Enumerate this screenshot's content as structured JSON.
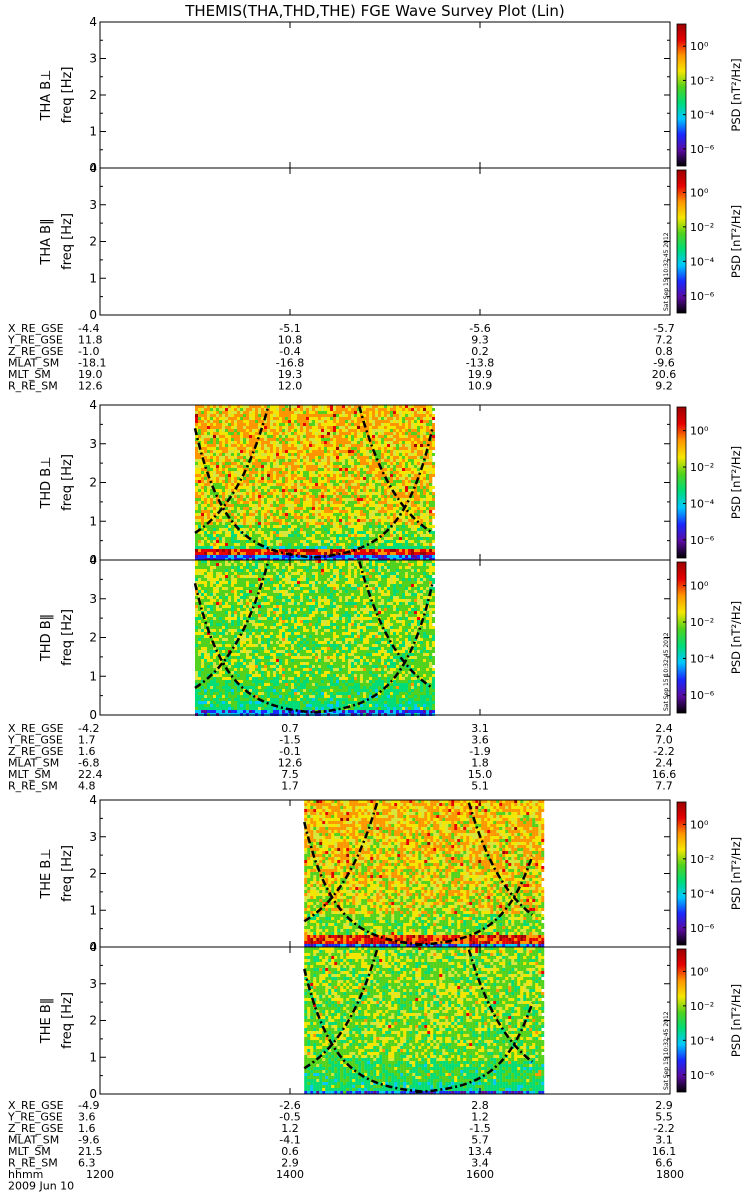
{
  "title": "THEMIS(THA,THD,THE) FGE Wave Survey Plot (Lin)",
  "chart_data": {
    "type": "heatmap",
    "time_axis": {
      "label": "hhmm",
      "ticks": [
        "1200",
        "1400",
        "1600",
        "1800"
      ],
      "date": "2009 Jun 10",
      "range_hours": [
        12,
        18
      ]
    },
    "colorbar": {
      "label": "PSD [nT²/Hz]",
      "ticks": [
        "10⁰",
        "10⁻²",
        "10⁻⁴",
        "10⁻⁶"
      ],
      "log_range": [
        -7,
        1.3
      ],
      "scale": "log",
      "colors": [
        "#000000",
        "#5a0aa0",
        "#1a28ff",
        "#00c8ff",
        "#00dc78",
        "#50d21e",
        "#f5e600",
        "#ff9600",
        "#e60000",
        "#9b0000"
      ],
      "stamp": "Sat Sep 15 10:32:45 2012"
    },
    "panels": [
      {
        "probe": "THA",
        "component": "B⊥",
        "ylabel": "freq [Hz]",
        "ylim": [
          0,
          4
        ],
        "yticks": [
          "0",
          "1",
          "2",
          "3",
          "4"
        ],
        "data_start_hour": null,
        "data_end_hour": null,
        "has_stamp": false
      },
      {
        "probe": "THA",
        "component": "B‖",
        "ylabel": "freq [Hz]",
        "ylim": [
          0,
          4
        ],
        "yticks": [
          "0",
          "1",
          "2",
          "3",
          "4"
        ],
        "data_start_hour": null,
        "data_end_hour": null,
        "has_stamp": true
      },
      {
        "probe": "THD",
        "component": "B⊥",
        "ylabel": "freq [Hz]",
        "ylim": [
          0,
          4
        ],
        "yticks": [
          "0",
          "1",
          "2",
          "3",
          "4"
        ],
        "data_start_hour": 13.0,
        "data_end_hour": 15.5,
        "has_stamp": false,
        "low_band_hz": 0.15,
        "gyro_lines": {
          "center_hour": 14.25,
          "min_hz": 0.7,
          "max_hz": 4.0
        }
      },
      {
        "probe": "THD",
        "component": "B‖",
        "ylabel": "freq [Hz]",
        "ylim": [
          0,
          4
        ],
        "yticks": [
          "0",
          "1",
          "2",
          "3",
          "4"
        ],
        "data_start_hour": 13.0,
        "data_end_hour": 15.5,
        "has_stamp": true,
        "low_band_hz": 0.15,
        "gyro_lines": {
          "center_hour": 14.25,
          "min_hz": 0.7,
          "max_hz": 4.0
        }
      },
      {
        "probe": "THE",
        "component": "B⊥",
        "ylabel": "freq [Hz]",
        "ylim": [
          0,
          4
        ],
        "yticks": [
          "0",
          "1",
          "2",
          "3",
          "4"
        ],
        "data_start_hour": 14.15,
        "data_end_hour": 16.65,
        "has_stamp": false,
        "low_band_hz": 0.15,
        "gyro_lines": {
          "center_hour": 15.3,
          "min_hz": 0.7,
          "max_hz": 4.0
        }
      },
      {
        "probe": "THE",
        "component": "B‖",
        "ylabel": "freq [Hz]",
        "ylim": [
          0,
          4
        ],
        "yticks": [
          "0",
          "1",
          "2",
          "3",
          "4"
        ],
        "data_start_hour": 14.15,
        "data_end_hour": 16.65,
        "has_stamp": true,
        "low_band_hz": 0.15,
        "gyro_lines": {
          "center_hour": 15.3,
          "min_hz": 0.7,
          "max_hz": 4.0
        }
      }
    ],
    "ephemeris": [
      {
        "probe": "THA",
        "rows": [
          {
            "label": "X_RE_GSE",
            "values": [
              "-4.4",
              "-5.1",
              "-5.6",
              "-5.7"
            ]
          },
          {
            "label": "Y_RE_GSE",
            "values": [
              "11.8",
              "10.8",
              "9.3",
              "7.2"
            ]
          },
          {
            "label": "Z_RE_GSE",
            "values": [
              "-1.0",
              "-0.4",
              "0.2",
              "0.8"
            ]
          },
          {
            "label": "MLAT_SM",
            "values": [
              "-18.1",
              "-16.8",
              "-13.8",
              "-9.6"
            ]
          },
          {
            "label": "MLT_SM",
            "values": [
              "19.0",
              "19.3",
              "19.9",
              "20.6"
            ]
          },
          {
            "label": "R_RE_SM",
            "values": [
              "12.6",
              "12.0",
              "10.9",
              "9.2"
            ]
          }
        ]
      },
      {
        "probe": "THD",
        "rows": [
          {
            "label": "X_RE_GSE",
            "values": [
              "-4.2",
              "0.7",
              "3.1",
              "2.4"
            ]
          },
          {
            "label": "Y_RE_GSE",
            "values": [
              "1.7",
              "-1.5",
              "3.6",
              "7.0"
            ]
          },
          {
            "label": "Z_RE_GSE",
            "values": [
              "1.6",
              "-0.1",
              "-1.9",
              "-2.2"
            ]
          },
          {
            "label": "MLAT_SM",
            "values": [
              "-6.8",
              "12.6",
              "1.8",
              "2.4"
            ]
          },
          {
            "label": "MLT_SM",
            "values": [
              "22.4",
              "7.5",
              "15.0",
              "16.6"
            ]
          },
          {
            "label": "R_RE_SM",
            "values": [
              "4.8",
              "1.7",
              "5.1",
              "7.7"
            ]
          }
        ]
      },
      {
        "probe": "THE",
        "rows": [
          {
            "label": "X_RE_GSE",
            "values": [
              "-4.9",
              "-2.6",
              "2.8",
              "2.9"
            ]
          },
          {
            "label": "Y_RE_GSE",
            "values": [
              "3.6",
              "-0.5",
              "1.2",
              "5.5"
            ]
          },
          {
            "label": "Z_RE_GSE",
            "values": [
              "1.6",
              "1.2",
              "-1.5",
              "-2.2"
            ]
          },
          {
            "label": "MLAT_SM",
            "values": [
              "-9.6",
              "-4.1",
              "5.7",
              "3.1"
            ]
          },
          {
            "label": "MLT_SM",
            "values": [
              "21.5",
              "0.6",
              "13.4",
              "16.1"
            ]
          },
          {
            "label": "R_RE_SM",
            "values": [
              "6.3",
              "2.9",
              "3.4",
              "6.6"
            ]
          }
        ]
      }
    ]
  }
}
